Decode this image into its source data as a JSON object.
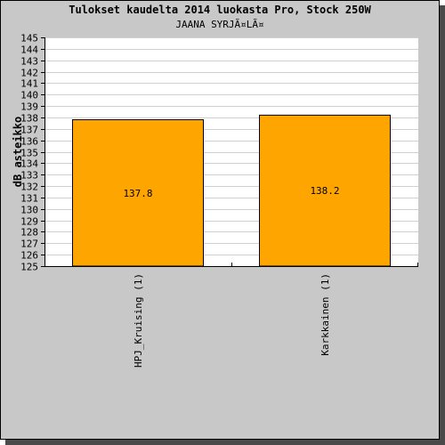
{
  "chart_data": {
    "type": "bar",
    "title": "Tulokset kaudelta 2014 luokasta Pro, Stock 250W",
    "subtitle": "JAANA SYRJÃ¤LÃ¤",
    "xlabel": "",
    "ylabel": "dB asteikko",
    "categories": [
      "HPJ_Kruising (1)",
      "Karkkainen (1)"
    ],
    "values": [
      137.8,
      138.2
    ],
    "value_labels": [
      "137.8",
      "138.2"
    ],
    "ylim": [
      125,
      145
    ],
    "ytick_step": 1,
    "grid": true,
    "legend": "none",
    "colors": {
      "bar_fill": "#ffa500",
      "bar_stroke": "#000000",
      "plot_background": "#ffffff",
      "frame_background": "#c8c8c8",
      "gridline": "#d0d0d0"
    }
  }
}
